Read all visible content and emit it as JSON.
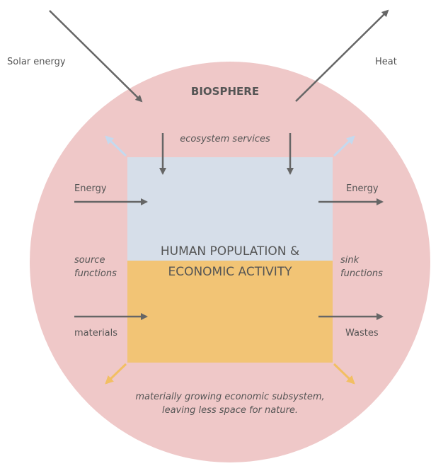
{
  "labels": {
    "solar_energy": "Solar energy",
    "heat": "Heat",
    "biosphere": "BIOSPHERE",
    "ecosystem_services": "ecosystem services",
    "energy_in": "Energy",
    "energy_out": "Energy",
    "center_title": [
      "HUMAN POPULATION &",
      "ECONOMIC ACTIVITY"
    ],
    "source_functions": [
      "source",
      "functions"
    ],
    "sink_functions": [
      "sink",
      "functions"
    ],
    "materials": "materials",
    "wastes": "Wastes",
    "caption": [
      "materially growing economic subsystem,",
      "leaving less space for nature."
    ]
  }
}
